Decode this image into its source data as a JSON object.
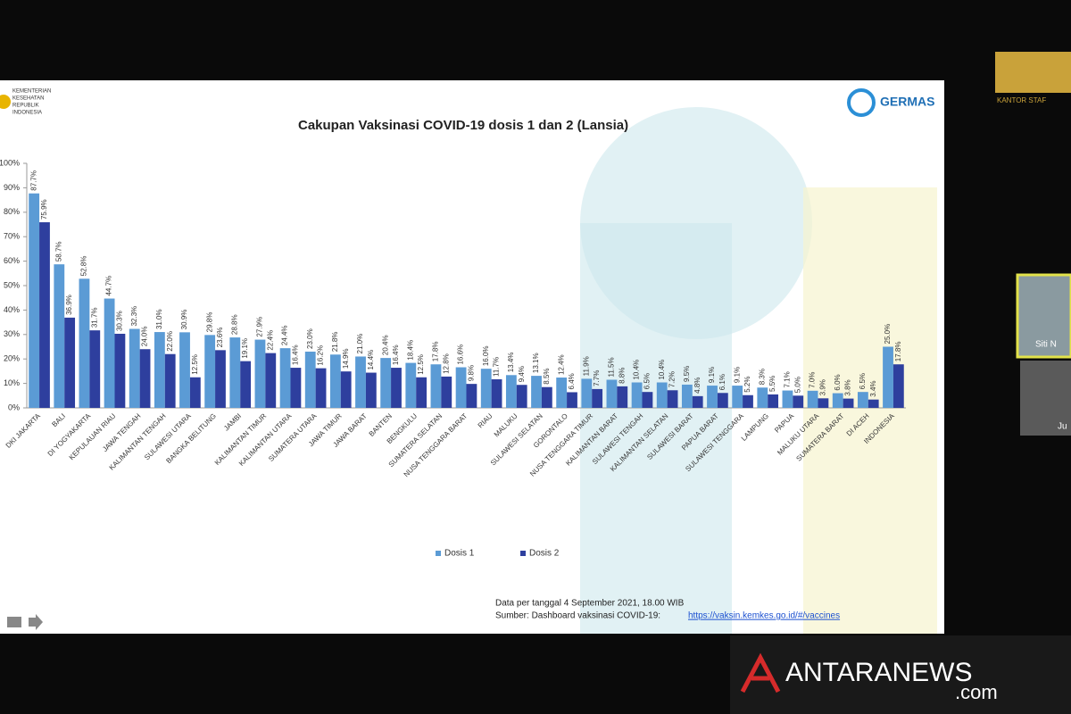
{
  "chart_data": {
    "type": "bar",
    "title": "Cakupan Vaksinasi COVID-19 dosis 1 dan 2 (Lansia)",
    "categories": [
      "DKI JAKARTA",
      "BALI",
      "DI YOGYAKARTA",
      "KEPULAUAN RIAU",
      "JAWA TENGAH",
      "KALIMANTAN TENGAH",
      "SULAWESI UTARA",
      "BANGKA BELITUNG",
      "JAMBI",
      "KALIMANTAN TIMUR",
      "KALIMANTAN UTARA",
      "SUMATERA UTARA",
      "JAWA TIMUR",
      "JAWA BARAT",
      "BANTEN",
      "BENGKULU",
      "SUMATERA SELATAN",
      "NUSA TENGGARA BARAT",
      "RIAU",
      "MALUKU",
      "SULAWESI SELATAN",
      "GORONTALO",
      "NUSA TENGGARA TIMUR",
      "KALIMANTAN BARAT",
      "SULAWESI TENGAH",
      "KALIMANTAN SELATAN",
      "SULAWESI BARAT",
      "PAPUA BARAT",
      "SULAWESI TENGGARA",
      "LAMPUNG",
      "PAPUA",
      "MALUKU UTARA",
      "SUMATERA BARAT",
      "DI ACEH",
      "INDONESIA"
    ],
    "series": [
      {
        "name": "Dosis  1",
        "color": "#5b9bd5",
        "values": [
          87.7,
          58.7,
          52.8,
          44.7,
          32.3,
          31.0,
          30.9,
          29.8,
          28.8,
          27.9,
          24.4,
          23.0,
          21.8,
          21.0,
          20.4,
          18.4,
          17.8,
          16.6,
          16.0,
          13.4,
          13.1,
          12.4,
          11.9,
          11.5,
          10.4,
          10.4,
          9.5,
          9.1,
          9.1,
          8.3,
          7.1,
          7.0,
          6.0,
          6.5,
          25.0
        ],
        "value_labels": [
          "87.7%",
          "58.7%",
          "52.8%",
          "44.7%",
          "32.3%",
          "31.0%",
          "30.9%",
          "29.8%",
          "28.8%",
          "27.9%",
          "24.4%",
          "23.0%",
          "21.8%",
          "21.0%",
          "20.4%",
          "18.4%",
          "17.8%",
          "16.6%",
          "16.0%",
          "13.4%",
          "13.1%",
          "12.4%",
          "11.9%",
          "11.5%",
          "10.4%",
          "10.4%",
          "9.5%",
          "9.1%",
          "9.1%",
          "8.3%",
          "7.1%",
          "7.0%",
          "6.0%",
          "6.5%",
          "25.0%"
        ]
      },
      {
        "name": "Dosis 2",
        "color": "#2e3f9e",
        "values": [
          75.9,
          36.9,
          31.7,
          30.3,
          24.0,
          22.0,
          12.5,
          23.6,
          19.1,
          22.4,
          16.4,
          16.2,
          14.9,
          14.4,
          16.4,
          12.5,
          12.8,
          9.8,
          11.7,
          9.4,
          8.5,
          6.4,
          7.7,
          8.8,
          6.5,
          7.2,
          4.8,
          6.1,
          5.2,
          5.5,
          5.0,
          3.9,
          3.8,
          3.4,
          17.8
        ],
        "value_labels": [
          "75.9%",
          "36.9%",
          "31.7%",
          "30.3%",
          "24.0%",
          "22.0%",
          "12.5%",
          "23.6%",
          "19.1%",
          "22.4%",
          "16.4%",
          "16.2%",
          "14.9%",
          "14.4%",
          "16.4%",
          "12.5%",
          "12.8%",
          "9.8%",
          "11.7%",
          "9.4%",
          "8.5%",
          "6.4%",
          "7.7%",
          "8.8%",
          "6.5%",
          "7.2%",
          "4.8%",
          "6.1%",
          "5.2%",
          "5.5%",
          "5.0%",
          "3.9%",
          "3.8%",
          "3.4%",
          "17.8%"
        ]
      }
    ],
    "ylim": [
      0,
      100
    ],
    "yticks": [
      {
        "value": 0,
        "label": "0%"
      },
      {
        "value": 10,
        "label": "10%"
      },
      {
        "value": 20,
        "label": "20%"
      },
      {
        "value": 30,
        "label": "30%"
      },
      {
        "value": 40,
        "label": "40%"
      },
      {
        "value": 50,
        "label": "50%"
      },
      {
        "value": 60,
        "label": "60%"
      },
      {
        "value": 70,
        "label": "70%"
      },
      {
        "value": 80,
        "label": "80%"
      },
      {
        "value": 90,
        "label": "90%"
      },
      {
        "value": 100,
        "label": "100%"
      }
    ],
    "legend": "bottom"
  },
  "slide": {
    "ministry": [
      "KEMENTERIAN",
      "KESEHATAN",
      "REPUBLIK",
      "INDONESIA"
    ],
    "logo": "GERMAS",
    "note": "Data per tanggal 4 September 2021, 18.00 WIB",
    "source_label": "Sumber:  Dashboard vaksinasi COVID-19:",
    "source_link": "https://vaksin.kemkes.go.id/#/vaccines"
  },
  "overlay": {
    "office": "KANTOR STAF",
    "participants": [
      "Siti N",
      "Ju"
    ],
    "watermark": "ANTARANEWS",
    "watermark_suffix": ".com"
  }
}
